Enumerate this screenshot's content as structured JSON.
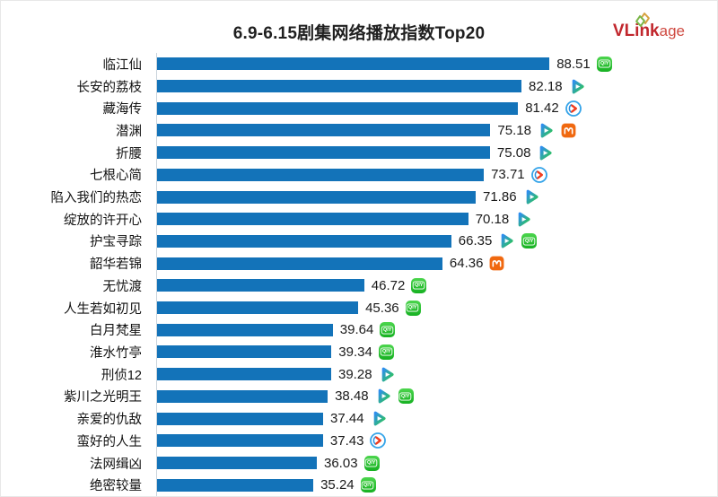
{
  "title": "6.9-6.15剧集网络播放指数Top20",
  "logo": {
    "brand": "VLinkage",
    "bold_part": "VLink",
    "light_part": "age"
  },
  "colors": {
    "bar": "#1373b9",
    "title_text": "#1f1f1f",
    "logo_red": "#c1272d",
    "iqiyi_green": "#21b82e",
    "mango_orange": "#f0680f",
    "youku_blue": "#35a4e9"
  },
  "platform_names": {
    "iqiyi": "爱奇艺",
    "tencent": "腾讯视频",
    "youku": "优酷",
    "mango": "芒果TV"
  },
  "iqiyi_badge_text": "QIY",
  "chart_data": {
    "type": "bar",
    "orientation": "horizontal",
    "title": "6.9-6.15剧集网络播放指数Top20",
    "xlabel": "",
    "ylabel": "",
    "xlim": [
      0,
      90
    ],
    "grid": false,
    "legend": false,
    "value_labels": "outside-end",
    "categories": [
      "临江仙",
      "长安的荔枝",
      "藏海传",
      "潜渊",
      "折腰",
      "七根心简",
      "陷入我们的热恋",
      "绽放的许开心",
      "护宝寻踪",
      "韶华若锦",
      "无忧渡",
      "人生若如初见",
      "白月梵星",
      "淮水竹亭",
      "刑侦12",
      "紫川之光明王",
      "亲爱的仇敌",
      "蛮好的人生",
      "法网缉凶",
      "绝密较量"
    ],
    "values": [
      88.51,
      82.18,
      81.42,
      75.18,
      75.08,
      73.71,
      71.86,
      70.18,
      66.35,
      64.36,
      46.72,
      45.36,
      39.64,
      39.34,
      39.28,
      38.48,
      37.44,
      37.43,
      36.03,
      35.24
    ],
    "platforms": [
      [
        "iqiyi"
      ],
      [
        "tencent"
      ],
      [
        "youku"
      ],
      [
        "tencent",
        "mango"
      ],
      [
        "tencent"
      ],
      [
        "youku"
      ],
      [
        "tencent"
      ],
      [
        "tencent"
      ],
      [
        "tencent",
        "iqiyi"
      ],
      [
        "mango"
      ],
      [
        "iqiyi"
      ],
      [
        "iqiyi"
      ],
      [
        "iqiyi"
      ],
      [
        "iqiyi"
      ],
      [
        "tencent"
      ],
      [
        "tencent",
        "iqiyi"
      ],
      [
        "tencent"
      ],
      [
        "youku"
      ],
      [
        "iqiyi"
      ],
      [
        "iqiyi"
      ]
    ]
  }
}
